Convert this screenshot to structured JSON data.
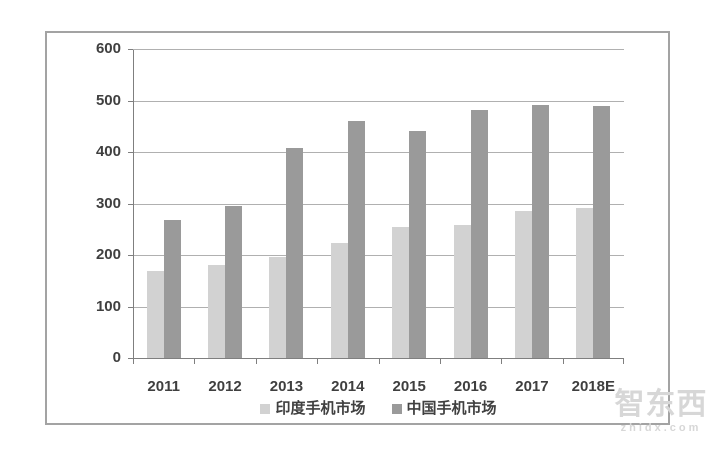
{
  "page": {
    "background": "#ffffff",
    "border_color": "#a3a3a3"
  },
  "watermark": {
    "logo": "智东西",
    "domain": "zhidx.com",
    "color": "#d7d7d7"
  },
  "chart_data": {
    "type": "bar",
    "title": "",
    "xlabel": "",
    "ylabel": "",
    "categories": [
      "2011",
      "2012",
      "2013",
      "2014",
      "2015",
      "2016",
      "2017",
      "2018E"
    ],
    "series": [
      {
        "name": "印度手机市场",
        "color": "#d2d2d2",
        "values": [
          170,
          182,
          198,
          225,
          256,
          261,
          288,
          293
        ]
      },
      {
        "name": "中国手机市场",
        "color": "#9a9a9a",
        "values": [
          270,
          297,
          410,
          463,
          443,
          484,
          493,
          491
        ]
      }
    ],
    "ylim": [
      0,
      600
    ],
    "yticks": [
      0,
      100,
      200,
      300,
      400,
      500,
      600
    ],
    "grid": true,
    "gridline_color": "#b0b0b0",
    "axis_color": "#7f7f7f",
    "label_color": "#3f3f3f",
    "legend_position": "bottom"
  }
}
